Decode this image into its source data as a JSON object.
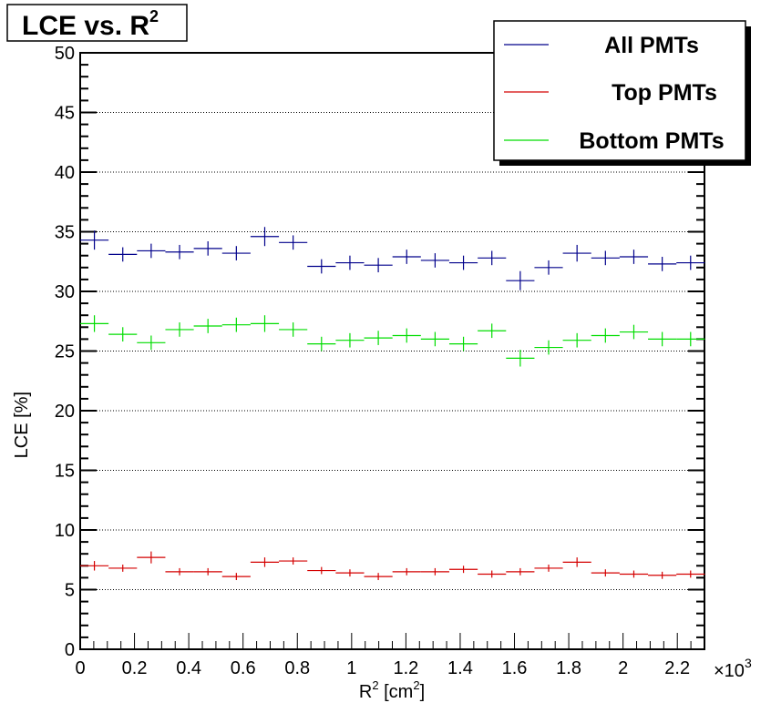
{
  "chart_data": {
    "type": "scatter",
    "title": "LCE vs. R",
    "title_sup": "2",
    "xlabel": "R",
    "xlabel_sup": "2",
    "xlabel_unit_pre": " [cm",
    "xlabel_unit_sup": "2",
    "xlabel_unit_post": "]",
    "ylabel": "LCE [%]",
    "x_multiplier_prefix": "×10",
    "x_multiplier_exp": "3",
    "xlim": [
      0,
      2300
    ],
    "ylim": [
      0,
      50
    ],
    "x_ticks": [
      "0",
      "0.2",
      "0.4",
      "0.6",
      "0.8",
      "1",
      "1.2",
      "1.4",
      "1.6",
      "1.8",
      "2",
      "2.2"
    ],
    "x_tick_values": [
      0,
      200,
      400,
      600,
      800,
      1000,
      1200,
      1400,
      1600,
      1800,
      2000,
      2200
    ],
    "y_ticks": [
      "0",
      "5",
      "10",
      "15",
      "20",
      "25",
      "30",
      "35",
      "40",
      "45",
      "50"
    ],
    "y_tick_values": [
      0,
      5,
      10,
      15,
      20,
      25,
      30,
      35,
      40,
      45,
      50
    ],
    "grid": "horizontal dotted",
    "legend_position": "top-right",
    "x": [
      52.3,
      156.9,
      261.5,
      366.1,
      470.7,
      575.3,
      679.9,
      784.5,
      889.1,
      993.7,
      1098.3,
      1202.9,
      1307.5,
      1412.1,
      1516.7,
      1621.3,
      1725.9,
      1830.5,
      1935.1,
      2039.7,
      2144.3,
      2248.9
    ],
    "x_half_width": 52.3,
    "series": [
      {
        "name": "All PMTs",
        "color": "#00008b",
        "values": [
          34.3,
          33.1,
          33.4,
          33.3,
          33.6,
          33.2,
          34.6,
          34.1,
          32.1,
          32.4,
          32.2,
          32.9,
          32.6,
          32.4,
          32.8,
          30.9,
          32.0,
          33.2,
          32.8,
          32.9,
          32.3,
          32.4
        ],
        "errors": [
          0.8,
          0.6,
          0.6,
          0.6,
          0.6,
          0.6,
          0.8,
          0.6,
          0.6,
          0.6,
          0.6,
          0.6,
          0.6,
          0.6,
          0.6,
          0.8,
          0.6,
          0.7,
          0.6,
          0.6,
          0.6,
          0.6
        ]
      },
      {
        "name": "Top PMTs",
        "color": "#d40000",
        "values": [
          7.0,
          6.8,
          7.7,
          6.5,
          6.5,
          6.1,
          7.3,
          7.4,
          6.6,
          6.4,
          6.1,
          6.5,
          6.5,
          6.7,
          6.3,
          6.5,
          6.8,
          7.3,
          6.4,
          6.3,
          6.2,
          6.3
        ],
        "errors": [
          0.4,
          0.3,
          0.5,
          0.3,
          0.3,
          0.3,
          0.4,
          0.3,
          0.3,
          0.3,
          0.3,
          0.3,
          0.3,
          0.3,
          0.3,
          0.3,
          0.3,
          0.4,
          0.3,
          0.3,
          0.3,
          0.3
        ]
      },
      {
        "name": "Bottom PMTs",
        "color": "#00dd00",
        "values": [
          27.3,
          26.4,
          25.7,
          26.8,
          27.1,
          27.2,
          27.3,
          26.8,
          25.6,
          25.9,
          26.1,
          26.3,
          26.0,
          25.6,
          26.7,
          24.4,
          25.3,
          25.9,
          26.3,
          26.6,
          26.0,
          26.0
        ],
        "errors": [
          0.7,
          0.6,
          0.6,
          0.6,
          0.6,
          0.6,
          0.7,
          0.6,
          0.6,
          0.6,
          0.6,
          0.6,
          0.6,
          0.6,
          0.6,
          0.7,
          0.6,
          0.6,
          0.6,
          0.6,
          0.6,
          0.6
        ]
      }
    ]
  }
}
